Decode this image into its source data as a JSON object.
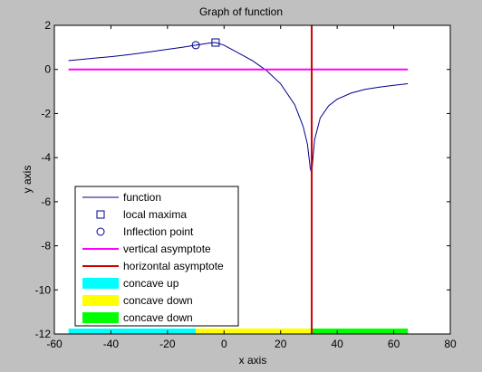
{
  "chart_data": {
    "type": "line",
    "title": "Graph of function",
    "xlabel": "x axis",
    "ylabel": "y axis",
    "xlim": [
      -60,
      80
    ],
    "ylim": [
      -12,
      2
    ],
    "xticks": [
      -60,
      -40,
      -20,
      0,
      20,
      40,
      60,
      80
    ],
    "yticks": [
      -12,
      -10,
      -8,
      -6,
      -4,
      -2,
      0,
      2
    ],
    "grid": false,
    "legend_position": "bottom-left",
    "series": [
      {
        "name": "function",
        "color": "#00008b",
        "style": "line",
        "x": [
          -55,
          -50,
          -45,
          -40,
          -35,
          -30,
          -25,
          -20,
          -15,
          -10,
          -5,
          -3,
          0,
          5,
          10,
          15,
          20,
          25,
          28,
          29.5,
          30.5,
          31,
          32,
          34,
          37,
          40,
          45,
          50,
          55,
          60,
          65
        ],
        "y": [
          0.4,
          0.46,
          0.52,
          0.58,
          0.65,
          0.73,
          0.82,
          0.91,
          1.0,
          1.1,
          1.2,
          1.22,
          1.1,
          0.75,
          0.4,
          -0.05,
          -0.65,
          -1.6,
          -2.6,
          -3.4,
          -4.5,
          -4.7,
          -3.2,
          -2.2,
          -1.65,
          -1.35,
          -1.07,
          -0.9,
          -0.8,
          -0.72,
          -0.65
        ]
      },
      {
        "name": "local maxima",
        "color": "#00008b",
        "style": "marker-square",
        "x": [
          -3
        ],
        "y": [
          1.22
        ]
      },
      {
        "name": "Inflection point",
        "color": "#00008b",
        "style": "marker-circle",
        "x": [
          -10
        ],
        "y": [
          1.1
        ]
      },
      {
        "name": "vertical asymptote",
        "color": "#ff00ff",
        "style": "line",
        "x": [
          -55,
          65
        ],
        "y": [
          0,
          0
        ]
      },
      {
        "name": "horizontal asymptote",
        "color": "#cc0000",
        "style": "line",
        "x": [
          31,
          31
        ],
        "y": [
          -12,
          2
        ]
      }
    ],
    "regions": [
      {
        "name": "concave up",
        "color": "#00ffff",
        "x": [
          -55,
          -10
        ]
      },
      {
        "name": "concave down",
        "color": "#ffff00",
        "x": [
          -10,
          31
        ]
      },
      {
        "name": "concave down",
        "color": "#00ff00",
        "x": [
          31,
          65
        ]
      }
    ]
  }
}
